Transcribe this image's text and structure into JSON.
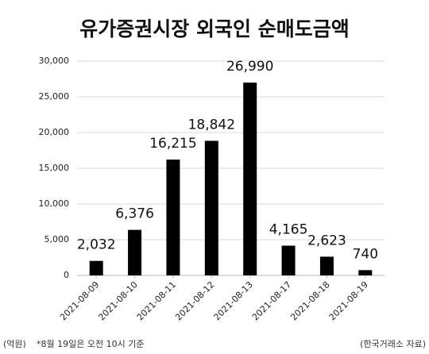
{
  "chart_data": {
    "type": "bar",
    "title": "유가증권시장 외국인 순매도금액",
    "categories": [
      "2021-08-09",
      "2021-08-10",
      "2021-08-11",
      "2021-08-12",
      "2021-08-13",
      "2021-08-17",
      "2021-08-18",
      "2021-08-19"
    ],
    "values": [
      2032,
      6376,
      16215,
      18842,
      26990,
      4165,
      2623,
      740
    ],
    "value_labels": [
      "2,032",
      "6,376",
      "16,215",
      "18,842",
      "26,990",
      "4,165",
      "2,623",
      "740"
    ],
    "color": "#000000",
    "ylim": [
      0,
      30000
    ],
    "yticks": [
      0,
      {
        "value": 5000,
        "label": "5,000"
      },
      {
        "value": 10000,
        "label": "10,000"
      },
      {
        "value": 15000,
        "label": "15,000"
      },
      {
        "value": 20000,
        "label": "20,000"
      },
      {
        "value": 25000,
        "label": "25,000"
      },
      {
        "value": 30000,
        "label": "30,000"
      }
    ],
    "grid": true,
    "unit": "(억원)",
    "note": "*8월 19일은 오전 10시 기준",
    "source": "(한국거래소 자료)"
  }
}
